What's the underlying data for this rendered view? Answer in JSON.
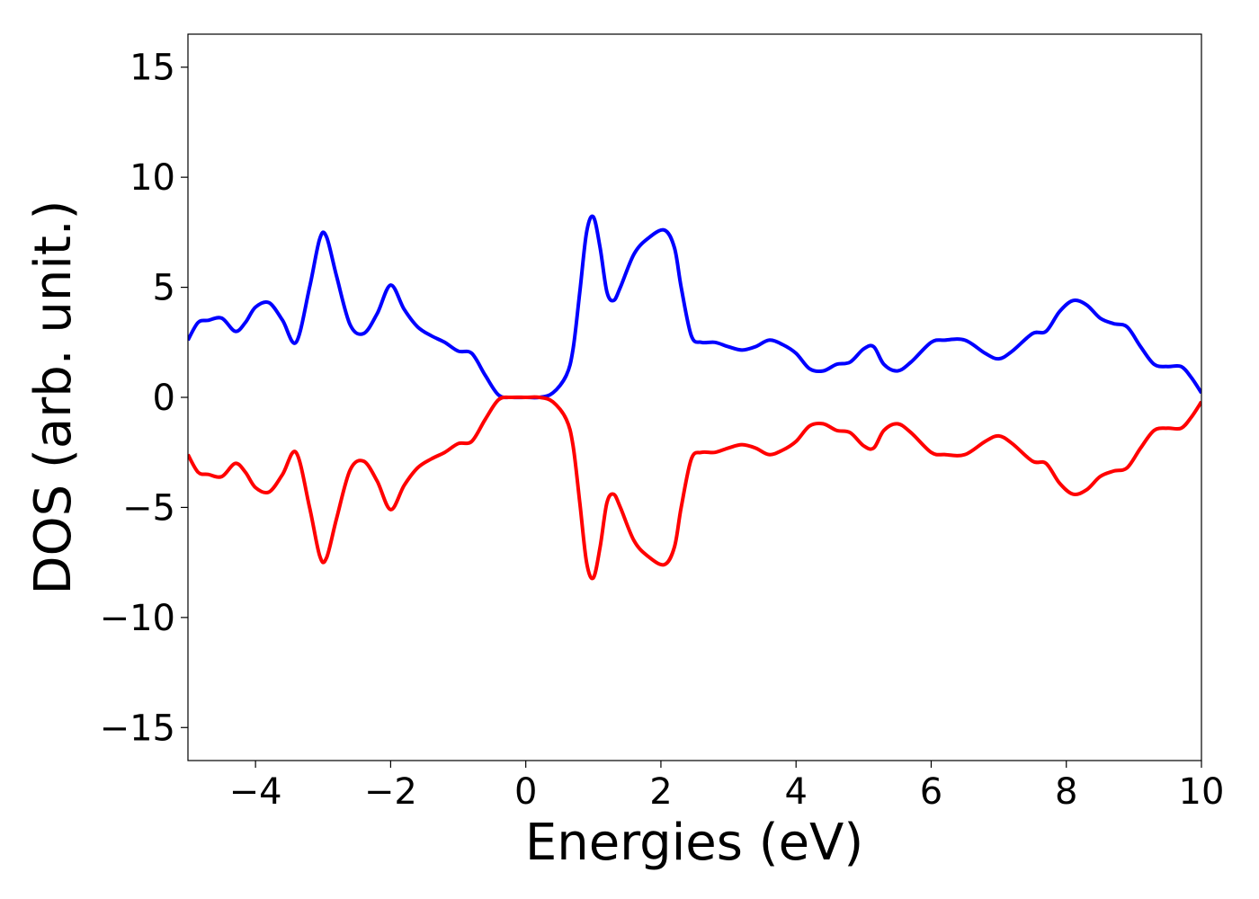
{
  "chart_data": {
    "type": "line",
    "title": "",
    "xlabel": "Energies (eV)",
    "ylabel": "DOS (arb. unit.)",
    "xlim": [
      -5,
      10
    ],
    "ylim": [
      -16.5,
      16.5
    ],
    "grid": false,
    "legend": "none",
    "x_ticks": [
      -4,
      -2,
      0,
      2,
      4,
      6,
      8,
      10
    ],
    "x_tick_labels": [
      "−4",
      "−2",
      "0",
      "2",
      "4",
      "6",
      "8",
      "10"
    ],
    "y_ticks": [
      -15,
      -10,
      -5,
      0,
      5,
      10,
      15
    ],
    "y_tick_labels": [
      "−15",
      "−10",
      "−5",
      "0",
      "5",
      "10",
      "15"
    ],
    "series": [
      {
        "color": "#0000ff",
        "x": [
          -5.0,
          -4.85,
          -4.7,
          -4.5,
          -4.3,
          -4.15,
          -4.0,
          -3.8,
          -3.6,
          -3.4,
          -3.2,
          -3.05,
          -2.95,
          -2.8,
          -2.6,
          -2.4,
          -2.2,
          -2.0,
          -1.8,
          -1.6,
          -1.4,
          -1.2,
          -1.0,
          -0.8,
          -0.6,
          -0.4,
          -0.2,
          0.0,
          0.2,
          0.4,
          0.6,
          0.7,
          0.8,
          0.9,
          1.0,
          1.1,
          1.2,
          1.3,
          1.4,
          1.6,
          1.8,
          2.05,
          2.2,
          2.3,
          2.45,
          2.6,
          2.8,
          3.0,
          3.2,
          3.4,
          3.6,
          3.8,
          4.0,
          4.2,
          4.4,
          4.6,
          4.8,
          5.0,
          5.15,
          5.3,
          5.5,
          5.7,
          6.0,
          6.2,
          6.5,
          6.8,
          7.0,
          7.2,
          7.5,
          7.7,
          7.9,
          8.1,
          8.3,
          8.5,
          8.7,
          8.9,
          9.1,
          9.3,
          9.5,
          9.7,
          9.85,
          10.0
        ],
        "y": [
          2.6,
          3.4,
          3.5,
          3.6,
          3.0,
          3.4,
          4.1,
          4.3,
          3.5,
          2.5,
          5.0,
          7.2,
          7.3,
          5.5,
          3.3,
          2.9,
          3.8,
          5.1,
          4.0,
          3.2,
          2.8,
          2.5,
          2.1,
          2.0,
          1.0,
          0.1,
          0.0,
          0.0,
          0.0,
          0.2,
          1.0,
          2.2,
          4.8,
          7.5,
          8.2,
          6.8,
          4.8,
          4.4,
          5.0,
          6.5,
          7.2,
          7.6,
          6.8,
          5.0,
          2.8,
          2.5,
          2.5,
          2.3,
          2.15,
          2.3,
          2.6,
          2.4,
          2.0,
          1.3,
          1.2,
          1.5,
          1.6,
          2.2,
          2.3,
          1.5,
          1.2,
          1.6,
          2.5,
          2.6,
          2.6,
          2.0,
          1.75,
          2.1,
          2.9,
          3.0,
          3.9,
          4.4,
          4.2,
          3.6,
          3.35,
          3.2,
          2.3,
          1.5,
          1.4,
          1.4,
          0.9,
          0.2
        ]
      },
      {
        "color": "#ff0000",
        "x": [
          -5.0,
          -4.85,
          -4.7,
          -4.5,
          -4.3,
          -4.15,
          -4.0,
          -3.8,
          -3.6,
          -3.4,
          -3.2,
          -3.05,
          -2.95,
          -2.8,
          -2.6,
          -2.4,
          -2.2,
          -2.0,
          -1.8,
          -1.6,
          -1.4,
          -1.2,
          -1.0,
          -0.8,
          -0.6,
          -0.4,
          -0.2,
          0.0,
          0.2,
          0.4,
          0.6,
          0.7,
          0.8,
          0.9,
          1.0,
          1.1,
          1.2,
          1.3,
          1.4,
          1.6,
          1.8,
          2.05,
          2.2,
          2.3,
          2.45,
          2.6,
          2.8,
          3.0,
          3.2,
          3.4,
          3.6,
          3.8,
          4.0,
          4.2,
          4.4,
          4.6,
          4.8,
          5.0,
          5.15,
          5.3,
          5.5,
          5.7,
          6.0,
          6.2,
          6.5,
          6.8,
          7.0,
          7.2,
          7.5,
          7.7,
          7.9,
          8.1,
          8.3,
          8.5,
          8.7,
          8.9,
          9.1,
          9.3,
          9.5,
          9.7,
          9.85,
          10.0
        ],
        "y": [
          -2.6,
          -3.4,
          -3.5,
          -3.6,
          -3.0,
          -3.4,
          -4.1,
          -4.3,
          -3.5,
          -2.5,
          -5.0,
          -7.2,
          -7.3,
          -5.5,
          -3.3,
          -2.9,
          -3.8,
          -5.1,
          -4.0,
          -3.2,
          -2.8,
          -2.5,
          -2.1,
          -2.0,
          -1.0,
          -0.1,
          0.0,
          0.0,
          0.0,
          -0.2,
          -1.0,
          -2.2,
          -4.8,
          -7.5,
          -8.2,
          -6.8,
          -4.8,
          -4.4,
          -5.0,
          -6.5,
          -7.2,
          -7.6,
          -6.8,
          -5.0,
          -2.8,
          -2.5,
          -2.5,
          -2.3,
          -2.15,
          -2.3,
          -2.6,
          -2.4,
          -2.0,
          -1.3,
          -1.2,
          -1.5,
          -1.6,
          -2.2,
          -2.3,
          -1.5,
          -1.2,
          -1.6,
          -2.5,
          -2.6,
          -2.6,
          -2.0,
          -1.75,
          -2.1,
          -2.9,
          -3.0,
          -3.9,
          -4.4,
          -4.2,
          -3.6,
          -3.35,
          -3.2,
          -2.3,
          -1.5,
          -1.4,
          -1.4,
          -0.9,
          -0.2
        ]
      }
    ]
  }
}
